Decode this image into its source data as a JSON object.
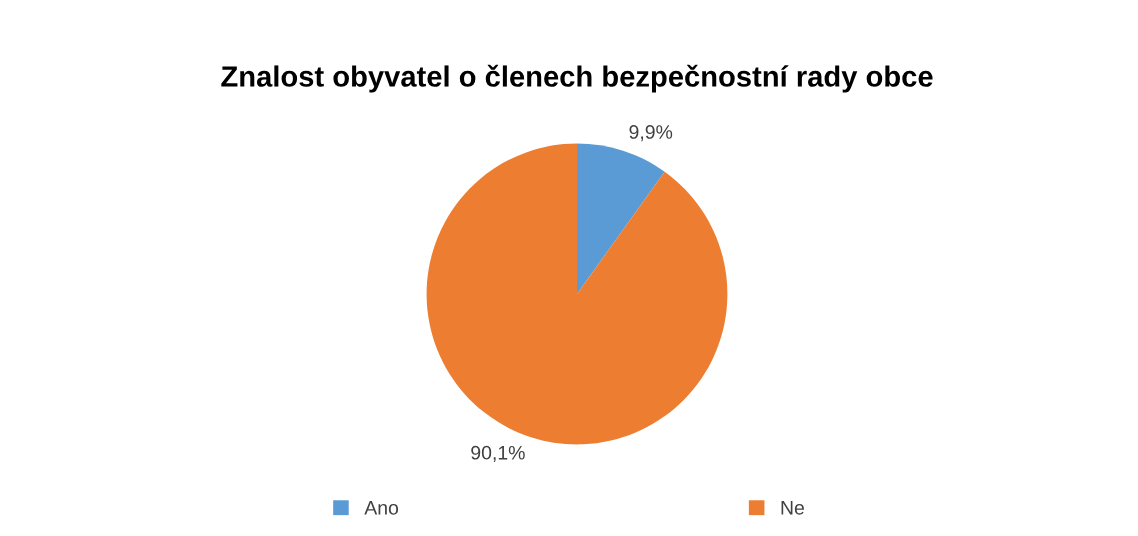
{
  "chart_data": {
    "type": "pie",
    "title": "Znalost obyvatel o členech bezpečnostní rady obce",
    "categories": [
      "Ano",
      "Ne"
    ],
    "values": [
      9.9,
      90.1
    ],
    "value_labels": [
      "9,9%",
      "90,1%"
    ],
    "colors": [
      "#5b9bd5",
      "#ed7d31"
    ],
    "legend": "bottom"
  }
}
